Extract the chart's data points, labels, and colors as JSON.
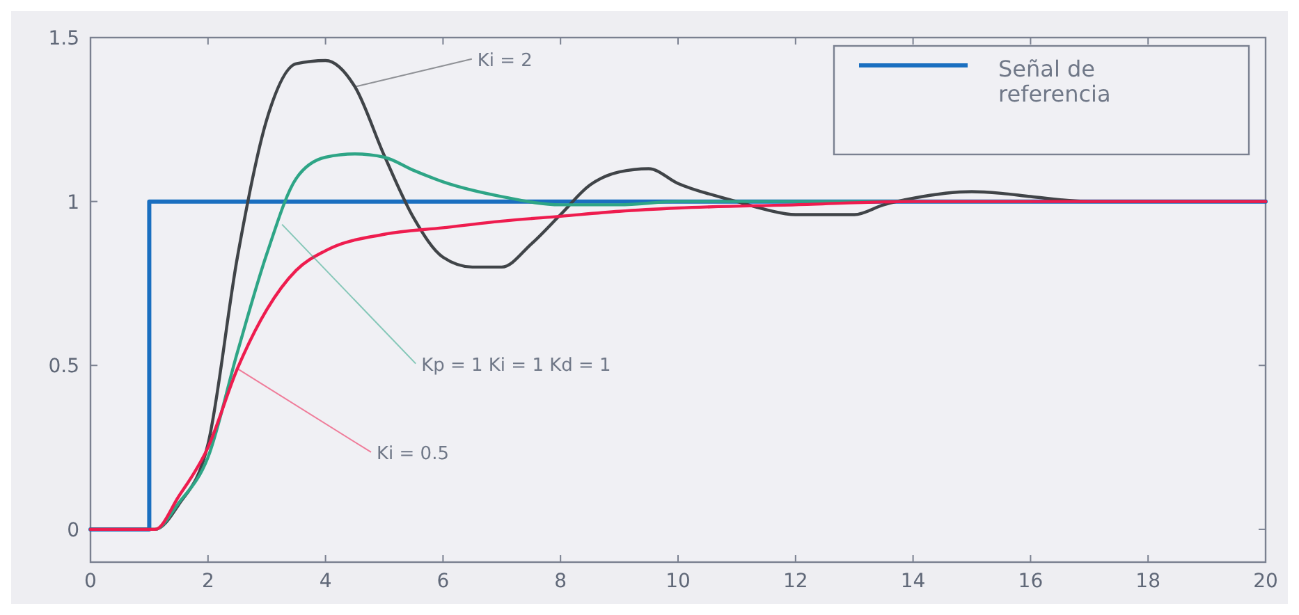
{
  "chart_data": {
    "type": "line",
    "xlim": [
      0,
      20
    ],
    "ylim": [
      -0.1,
      1.5
    ],
    "xticks": [
      0,
      2,
      4,
      6,
      8,
      10,
      12,
      14,
      16,
      18,
      20
    ],
    "yticks": [
      0,
      0.5,
      1,
      1.5
    ],
    "grid": false,
    "legend": "top right",
    "marker": "none",
    "line_style": "solid",
    "series": [
      {
        "name": "Señal de referencia",
        "color": "#1a6fc0",
        "x": [
          0,
          1,
          1,
          20
        ],
        "values": [
          0,
          0,
          1,
          1
        ]
      },
      {
        "color": "#404448",
        "x": [
          0,
          1,
          1.1,
          1.5,
          2,
          2.5,
          3,
          3.5,
          4,
          4.5,
          5,
          5.5,
          6,
          6.5,
          7,
          7.5,
          8,
          8.5,
          9,
          9.5,
          10,
          11,
          11.5,
          12,
          13,
          13.5,
          14,
          15,
          15.5,
          16,
          17,
          18,
          20
        ],
        "values": [
          0,
          0,
          0,
          0.075,
          0.26,
          0.83,
          1.25,
          1.42,
          1.43,
          1.35,
          1.14,
          0.95,
          0.83,
          0.8,
          0.8,
          0.87,
          0.96,
          1.05,
          1.09,
          1.1,
          1.055,
          1.0,
          0.975,
          0.96,
          0.96,
          0.99,
          1.01,
          1.03,
          1.025,
          1.015,
          1.0,
          1.0,
          1.0
        ]
      },
      {
        "color": "#2ea586",
        "x": [
          0,
          1,
          1.1,
          1.5,
          2,
          2.5,
          3,
          3.5,
          4,
          4.5,
          5,
          5.5,
          6,
          7,
          8,
          9,
          10,
          12,
          14,
          16
        ],
        "values": [
          0,
          0,
          0,
          0.08,
          0.22,
          0.54,
          0.84,
          1.07,
          1.135,
          1.145,
          1.135,
          1.095,
          1.06,
          1.015,
          0.99,
          0.99,
          1.0,
          1.0,
          1.0,
          1.0
        ]
      },
      {
        "color": "#ee1c4e",
        "x": [
          0,
          1,
          1.1,
          1.5,
          2,
          2.5,
          3,
          3.5,
          4,
          5,
          6,
          7,
          8,
          9,
          10,
          12,
          14,
          16,
          18,
          20
        ],
        "values": [
          0,
          0,
          0,
          0.1,
          0.25,
          0.49,
          0.67,
          0.79,
          0.85,
          0.9,
          0.92,
          0.94,
          0.955,
          0.97,
          0.98,
          0.99,
          1.0,
          1.0,
          1.0,
          1.0
        ]
      }
    ],
    "annotations": [
      {
        "text": "Ki = 2",
        "x": 4.5,
        "y": 1.35
      },
      {
        "text": "Kp = 1  Ki = 1  Kd = 1",
        "x": 3.26,
        "y": 0.93
      },
      {
        "text": "Ki = 0.5",
        "x": 2.5,
        "y": 0.49
      }
    ]
  }
}
